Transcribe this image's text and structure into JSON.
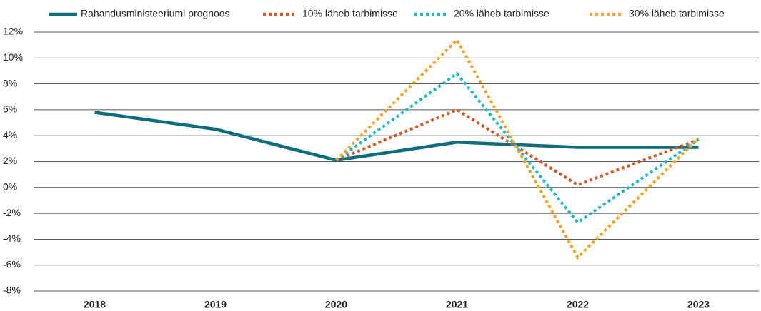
{
  "chart_data": {
    "type": "line",
    "categories": [
      "2018",
      "2019",
      "2020",
      "2021",
      "2022",
      "2023"
    ],
    "series": [
      {
        "name": "Rahandusministeeriumi prognoos",
        "color": "#0e6e7e",
        "style": "solid",
        "values": [
          5.8,
          4.5,
          2.1,
          3.5,
          3.1,
          3.1
        ]
      },
      {
        "name": "10% läheb tarbimisse",
        "color": "#d4582a",
        "style": "dotted",
        "values": [
          null,
          null,
          2.1,
          6.0,
          0.2,
          3.7
        ]
      },
      {
        "name": "20% läheb tarbimisse",
        "color": "#22b8c8",
        "style": "dotted",
        "values": [
          null,
          null,
          2.1,
          8.8,
          -2.7,
          3.7
        ]
      },
      {
        "name": "30% läheb tarbimisse",
        "color": "#f2a52a",
        "style": "dotted",
        "values": [
          null,
          null,
          2.1,
          11.4,
          -5.4,
          3.8
        ]
      }
    ],
    "ylim": [
      -8,
      12
    ],
    "yticks": [
      {
        "value": -8,
        "label": "-8%"
      },
      {
        "value": -6,
        "label": "-6%"
      },
      {
        "value": -4,
        "label": "-4%"
      },
      {
        "value": -2,
        "label": "-2%"
      },
      {
        "value": 0,
        "label": "0%"
      },
      {
        "value": 2,
        "label": "2%"
      },
      {
        "value": 4,
        "label": "4%"
      },
      {
        "value": 6,
        "label": "6%"
      },
      {
        "value": 8,
        "label": "8%"
      },
      {
        "value": 10,
        "label": "10%"
      },
      {
        "value": 12,
        "label": "12%"
      }
    ],
    "grid": true,
    "legend": "top"
  }
}
